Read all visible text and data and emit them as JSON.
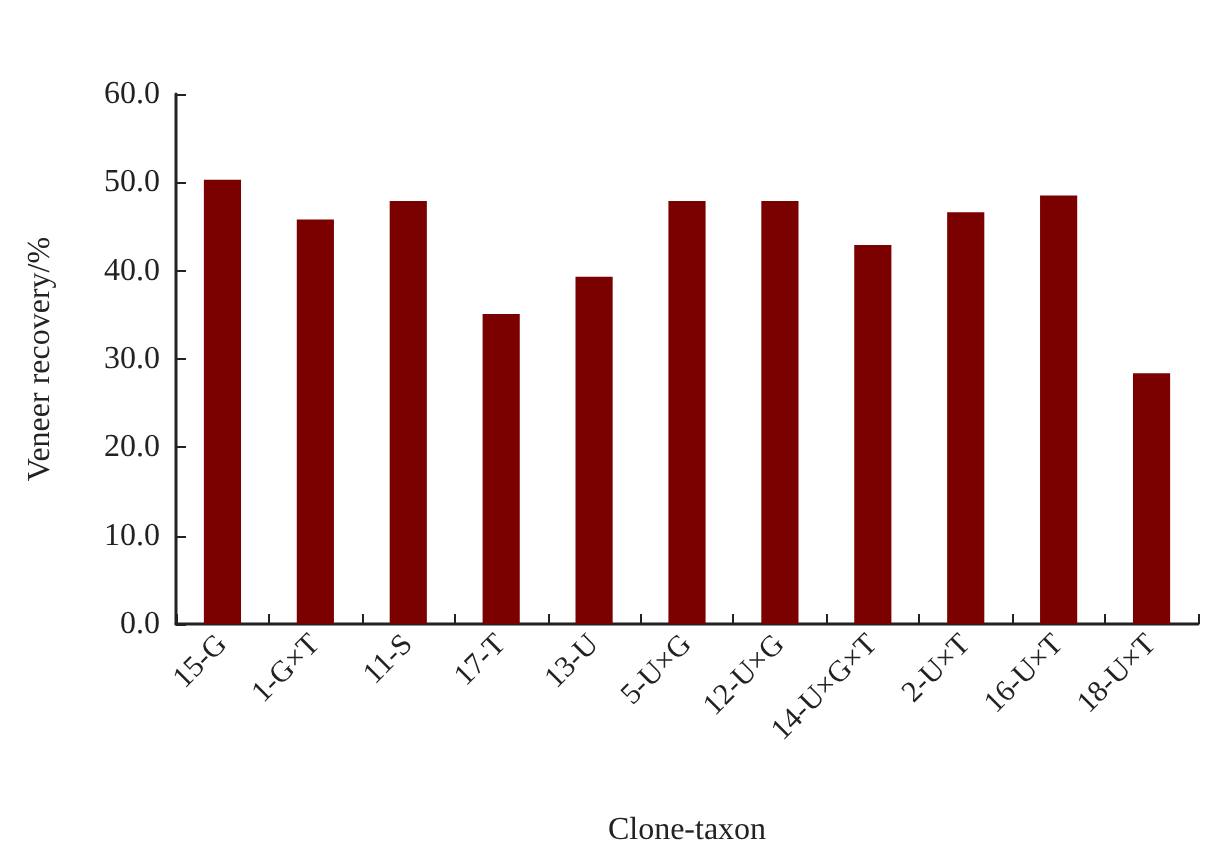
{
  "chart_data": {
    "type": "bar",
    "xlabel": "Clone-taxon",
    "ylabel": "Veneer recovery/%",
    "categories": [
      "15-G",
      "1-G×T",
      "11-S",
      "17-T",
      "13-U",
      "5-U×G",
      "12-U×G",
      "14-U×G×T",
      "2-U×T",
      "16-U×T",
      "18-U×T"
    ],
    "values": [
      50.3,
      45.8,
      47.9,
      35.1,
      39.3,
      47.9,
      47.9,
      42.9,
      46.6,
      48.5,
      28.4
    ],
    "color": "#7b0000",
    "ylim": [
      0,
      60
    ],
    "yticks": [
      {
        "value": 0,
        "label": "0.0"
      },
      {
        "value": 10,
        "label": "10.0"
      },
      {
        "value": 20,
        "label": "20.0"
      },
      {
        "value": 30,
        "label": "30.0"
      },
      {
        "value": 40,
        "label": "40.0"
      },
      {
        "value": 50,
        "label": "50.0"
      },
      {
        "value": 60,
        "label": "60.0"
      }
    ],
    "grid": false
  }
}
